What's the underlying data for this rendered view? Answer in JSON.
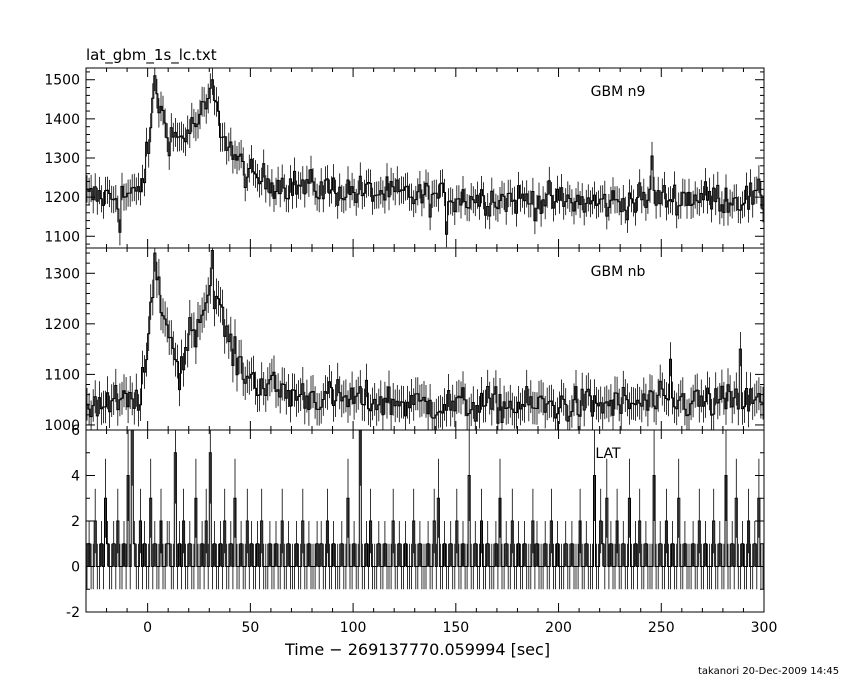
{
  "title": "lat_gbm_1s_lc.txt",
  "footer": "takanori 20-Dec-2009 14:45",
  "colors": {
    "line": "#000000",
    "background": "#ffffff"
  },
  "chart_data": {
    "type": "line",
    "xlabel": "Time − 269137770.059994 [sec]",
    "xlim": [
      -30,
      300
    ],
    "x_ticks": [
      0,
      50,
      100,
      150,
      200,
      250,
      300
    ],
    "grid": false,
    "panels": [
      {
        "name": "GBM n9",
        "ylim": [
          1070,
          1530
        ],
        "y_ticks": [
          1100,
          1200,
          1300,
          1400,
          1500
        ],
        "baseline": 1200,
        "noise": 38,
        "profile": [
          [
            -30,
            1200
          ],
          [
            -6,
            1205
          ],
          [
            -3,
            1240
          ],
          [
            0,
            1320
          ],
          [
            3,
            1480
          ],
          [
            6,
            1420
          ],
          [
            10,
            1360
          ],
          [
            15,
            1350
          ],
          [
            20,
            1370
          ],
          [
            25,
            1400
          ],
          [
            31,
            1460
          ],
          [
            35,
            1380
          ],
          [
            42,
            1300
          ],
          [
            50,
            1250
          ],
          [
            70,
            1230
          ],
          [
            100,
            1215
          ],
          [
            140,
            1200
          ],
          [
            180,
            1195
          ],
          [
            220,
            1185
          ],
          [
            260,
            1200
          ],
          [
            300,
            1195
          ]
        ],
        "spikes": [
          [
            3,
            1510
          ],
          [
            31,
            1500
          ],
          [
            -14,
            1110
          ],
          [
            145,
            1105
          ],
          [
            245,
            1305
          ]
        ]
      },
      {
        "name": "GBM nb",
        "ylim": [
          990,
          1350
        ],
        "y_ticks": [
          1000,
          1100,
          1200,
          1300
        ],
        "baseline": 1040,
        "noise": 32,
        "profile": [
          [
            -30,
            1040
          ],
          [
            -6,
            1045
          ],
          [
            -3,
            1080
          ],
          [
            0,
            1160
          ],
          [
            3,
            1300
          ],
          [
            6,
            1250
          ],
          [
            10,
            1180
          ],
          [
            15,
            1120
          ],
          [
            20,
            1180
          ],
          [
            25,
            1210
          ],
          [
            31,
            1290
          ],
          [
            35,
            1220
          ],
          [
            42,
            1130
          ],
          [
            50,
            1090
          ],
          [
            70,
            1060
          ],
          [
            100,
            1050
          ],
          [
            140,
            1040
          ],
          [
            180,
            1038
          ],
          [
            220,
            1040
          ],
          [
            260,
            1045
          ],
          [
            300,
            1045
          ]
        ],
        "spikes": [
          [
            3,
            1340
          ],
          [
            31,
            1345
          ],
          [
            15,
            1070
          ],
          [
            254,
            1130
          ],
          [
            288,
            1150
          ]
        ]
      },
      {
        "name": "LAT",
        "ylim": [
          -2,
          6
        ],
        "y_ticks": [
          -2,
          0,
          2,
          4,
          6
        ],
        "counts": [
          0,
          1,
          0,
          0,
          2,
          0,
          0,
          1,
          0,
          3,
          1,
          0,
          0,
          1,
          0,
          2,
          0,
          0,
          1,
          0,
          4,
          0,
          6,
          1,
          0,
          0,
          2,
          0,
          1,
          0,
          0,
          3,
          0,
          1,
          0,
          0,
          2,
          0,
          0,
          1,
          1,
          0,
          0,
          5,
          0,
          1,
          0,
          2,
          0,
          0,
          1,
          0,
          0,
          3,
          0,
          0,
          1,
          0,
          2,
          0,
          5,
          0,
          1,
          0,
          0,
          1,
          0,
          2,
          0,
          0,
          1,
          0,
          3,
          0,
          0,
          1,
          0,
          0,
          2,
          0,
          1,
          0,
          0,
          1,
          0,
          2,
          0,
          0,
          0,
          1,
          0,
          0,
          1,
          0,
          0,
          2,
          0,
          0,
          1,
          0,
          0,
          0,
          1,
          0,
          0,
          2,
          0,
          0,
          1,
          0,
          0,
          0,
          1,
          0,
          1,
          0,
          0,
          2,
          0,
          0,
          1,
          0,
          0,
          0,
          1,
          0,
          0,
          3,
          0,
          0,
          1,
          0,
          0,
          6,
          0,
          0,
          1,
          0,
          2,
          0,
          0,
          0,
          1,
          0,
          0,
          1,
          0,
          0,
          0,
          2,
          0,
          0,
          1,
          0,
          0,
          1,
          0,
          0,
          0,
          2,
          0,
          0,
          1,
          0,
          0,
          0,
          1,
          0,
          0,
          2,
          0,
          3,
          0,
          0,
          1,
          0,
          0,
          1,
          0,
          0,
          2,
          0,
          0,
          1,
          0,
          0,
          4,
          0,
          0,
          1,
          0,
          0,
          2,
          0,
          0,
          1,
          0,
          0,
          0,
          1,
          0,
          3,
          0,
          0,
          1,
          0,
          0,
          2,
          0,
          0,
          1,
          0,
          0,
          1,
          0,
          0,
          0,
          2,
          0,
          1,
          0,
          0,
          0,
          1,
          0,
          0,
          2,
          0,
          0,
          1,
          0,
          0,
          0,
          1,
          0,
          0,
          1,
          0,
          0,
          0,
          2,
          0,
          0,
          1,
          0,
          0,
          0,
          4,
          0,
          0,
          2,
          1,
          0,
          3,
          0,
          1,
          0,
          0,
          2,
          0,
          0,
          1,
          0,
          0,
          3,
          0,
          0,
          1,
          0,
          2,
          0,
          0,
          1,
          0,
          0,
          0,
          4,
          0,
          0,
          1,
          0,
          0,
          2,
          0,
          0,
          1,
          0,
          0,
          3,
          0,
          0,
          1,
          0,
          0,
          0,
          1,
          0,
          0,
          2,
          0,
          0,
          1,
          0,
          0,
          0,
          2,
          0,
          0,
          1,
          0,
          0,
          4,
          0,
          0,
          1,
          0,
          3,
          0,
          0,
          1,
          0,
          0,
          2,
          0,
          0,
          1,
          0,
          3,
          0,
          0,
          1,
          0,
          0,
          0,
          1,
          0,
          0,
          4,
          0,
          0,
          1,
          0,
          0,
          2,
          0,
          0,
          0,
          1,
          0,
          0,
          2,
          0,
          1,
          0,
          0,
          0,
          2,
          0,
          0,
          1,
          0,
          0,
          0,
          1,
          0,
          0,
          0,
          2,
          0,
          0,
          1,
          0,
          0,
          0,
          2,
          0,
          0,
          1
        ]
      }
    ]
  }
}
